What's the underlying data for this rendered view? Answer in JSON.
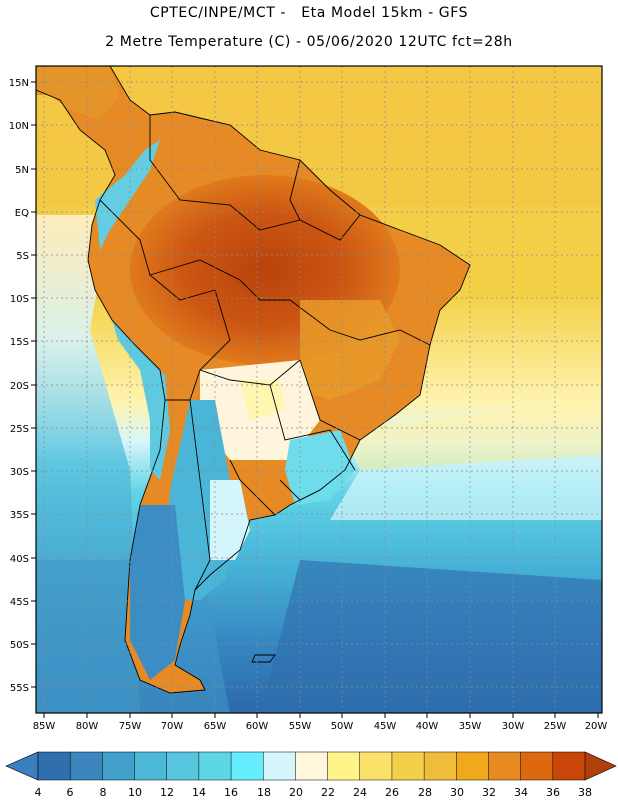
{
  "header": {
    "line1": "CPTEC/INPE/MCT -   Eta Model 15km - GFS",
    "line2": "2 Metre Temperature (C) - 05/06/2020 12UTC fct=28h"
  },
  "axes": {
    "lat_labels": [
      "15N",
      "10N",
      "5N",
      "EQ",
      "5S",
      "10S",
      "15S",
      "20S",
      "25S",
      "30S",
      "35S",
      "40S",
      "45S",
      "50S",
      "55S"
    ],
    "lon_labels": [
      "85W",
      "80W",
      "75W",
      "70W",
      "65W",
      "60W",
      "55W",
      "50W",
      "45W",
      "40W",
      "35W",
      "30W",
      "25W",
      "20W"
    ]
  },
  "colorbar": {
    "ticks": [
      "4",
      "6",
      "8",
      "10",
      "12",
      "14",
      "16",
      "18",
      "20",
      "22",
      "24",
      "26",
      "28",
      "30",
      "32",
      "34",
      "36",
      "38"
    ],
    "colors": [
      "#2f6fae",
      "#3a86bd",
      "#41a0cc",
      "#4db8d8",
      "#57c6de",
      "#5fd6e6",
      "#66eeff",
      "#d4f6fc",
      "#fff6dc",
      "#fff48a",
      "#fae26a",
      "#f4cf4c",
      "#efbd3a",
      "#f0a81c",
      "#e88a22",
      "#dc6810",
      "#c84608"
    ],
    "under_color": "#3a80c0",
    "over_color": "#b0400a"
  },
  "map_layers": {
    "ocean_pacific": "#45b4d6",
    "ocean_south": "#2f73b0",
    "ocean_north_atlantic": "#f3d046",
    "amazon_hot": "#c04e10",
    "warm_land": "#e27a1c",
    "andes_cold": "#56c8dc",
    "patagonia": "#5ed2e6",
    "pampas": "#fff6dc"
  }
}
